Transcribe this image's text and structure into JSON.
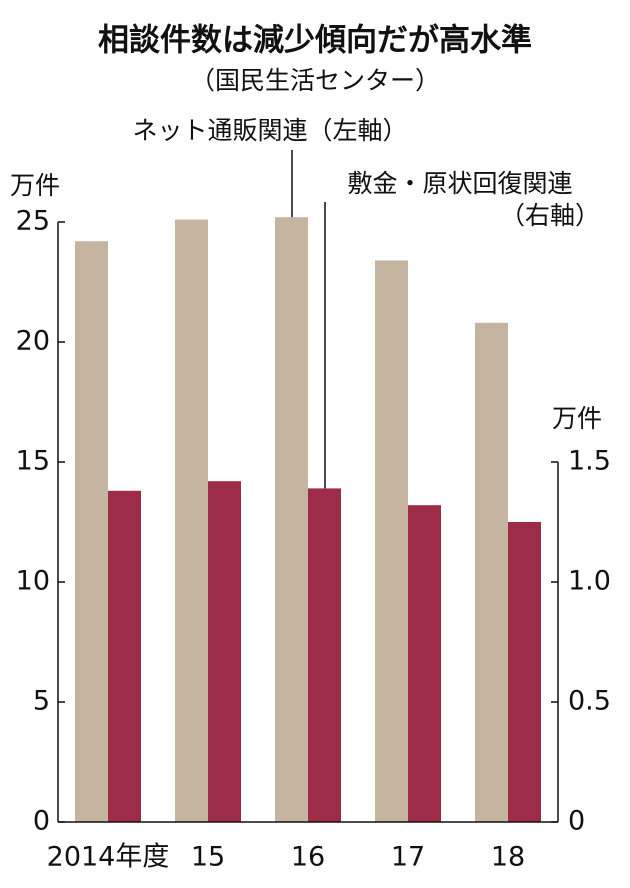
{
  "chart_data": {
    "type": "bar",
    "title": "相談件数は減少傾向だが高水準",
    "subtitle": "（国民生活センター）",
    "ylabel": "万件",
    "y2label": "万件",
    "categories": [
      "2014年度",
      "15",
      "16",
      "17",
      "18"
    ],
    "series": [
      {
        "name": "ネット通販関連（左軸）",
        "color": "#c5b49f",
        "values": [
          24.2,
          25.1,
          25.2,
          23.4,
          20.8
        ]
      },
      {
        "name": "敷金・原状回復関連",
        "axis_note": "（右軸）",
        "color": "#9c2c47",
        "axis": "y2",
        "values": [
          1.38,
          1.42,
          1.39,
          1.32,
          1.25
        ]
      }
    ],
    "ylim": [
      0,
      25
    ],
    "yticks": [
      0,
      5,
      10,
      15,
      20,
      25
    ],
    "y2lim": [
      0,
      2.5
    ],
    "y2ticks": [
      0,
      0.5,
      {
        "value": 1,
        "label": "1.0"
      },
      1.5
    ],
    "grid": false
  }
}
